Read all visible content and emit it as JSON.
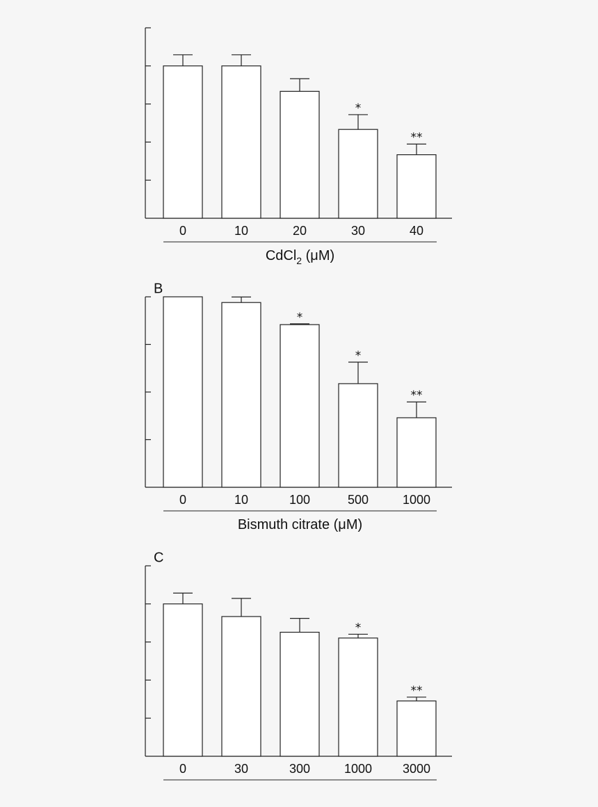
{
  "chart_data": [
    {
      "type": "bar",
      "panel_label": "",
      "xlabel": "CdCl",
      "xlabel_sub": "2",
      "xlabel_unit": " (μM)",
      "categories": [
        "0",
        "10",
        "20",
        "30",
        "40"
      ],
      "values": [
        100,
        100,
        83.3,
        58.3,
        41.7
      ],
      "errors": [
        7.3,
        7.3,
        8.3,
        9.7,
        7.0
      ],
      "significance": [
        "",
        "",
        "",
        "*",
        "**"
      ],
      "ylim": [
        0,
        125
      ],
      "grid": false
    },
    {
      "type": "bar",
      "panel_label": "B",
      "xlabel": "Bismuth citrate",
      "xlabel_sub": "",
      "xlabel_unit": " (μM)",
      "categories": [
        "0",
        "10",
        "100",
        "500",
        "1000"
      ],
      "values": [
        100,
        97,
        85.4,
        54.4,
        36.5
      ],
      "errors": [
        0,
        2.9,
        0.4,
        11.3,
        8.3
      ],
      "significance": [
        "",
        "",
        "*",
        "*",
        "**"
      ],
      "ylim": [
        0,
        100
      ],
      "grid": false
    },
    {
      "type": "bar",
      "panel_label": "C",
      "xlabel": "",
      "xlabel_sub": "",
      "xlabel_unit": "",
      "categories": [
        "0",
        "30",
        "300",
        "1000",
        "3000"
      ],
      "values": [
        100,
        91.7,
        81.4,
        77.6,
        36.3
      ],
      "errors": [
        7.1,
        11.9,
        9.1,
        2.5,
        2.5
      ],
      "significance": [
        "",
        "",
        "",
        "*",
        "**"
      ],
      "ylim": [
        0,
        125
      ],
      "grid": false
    }
  ]
}
